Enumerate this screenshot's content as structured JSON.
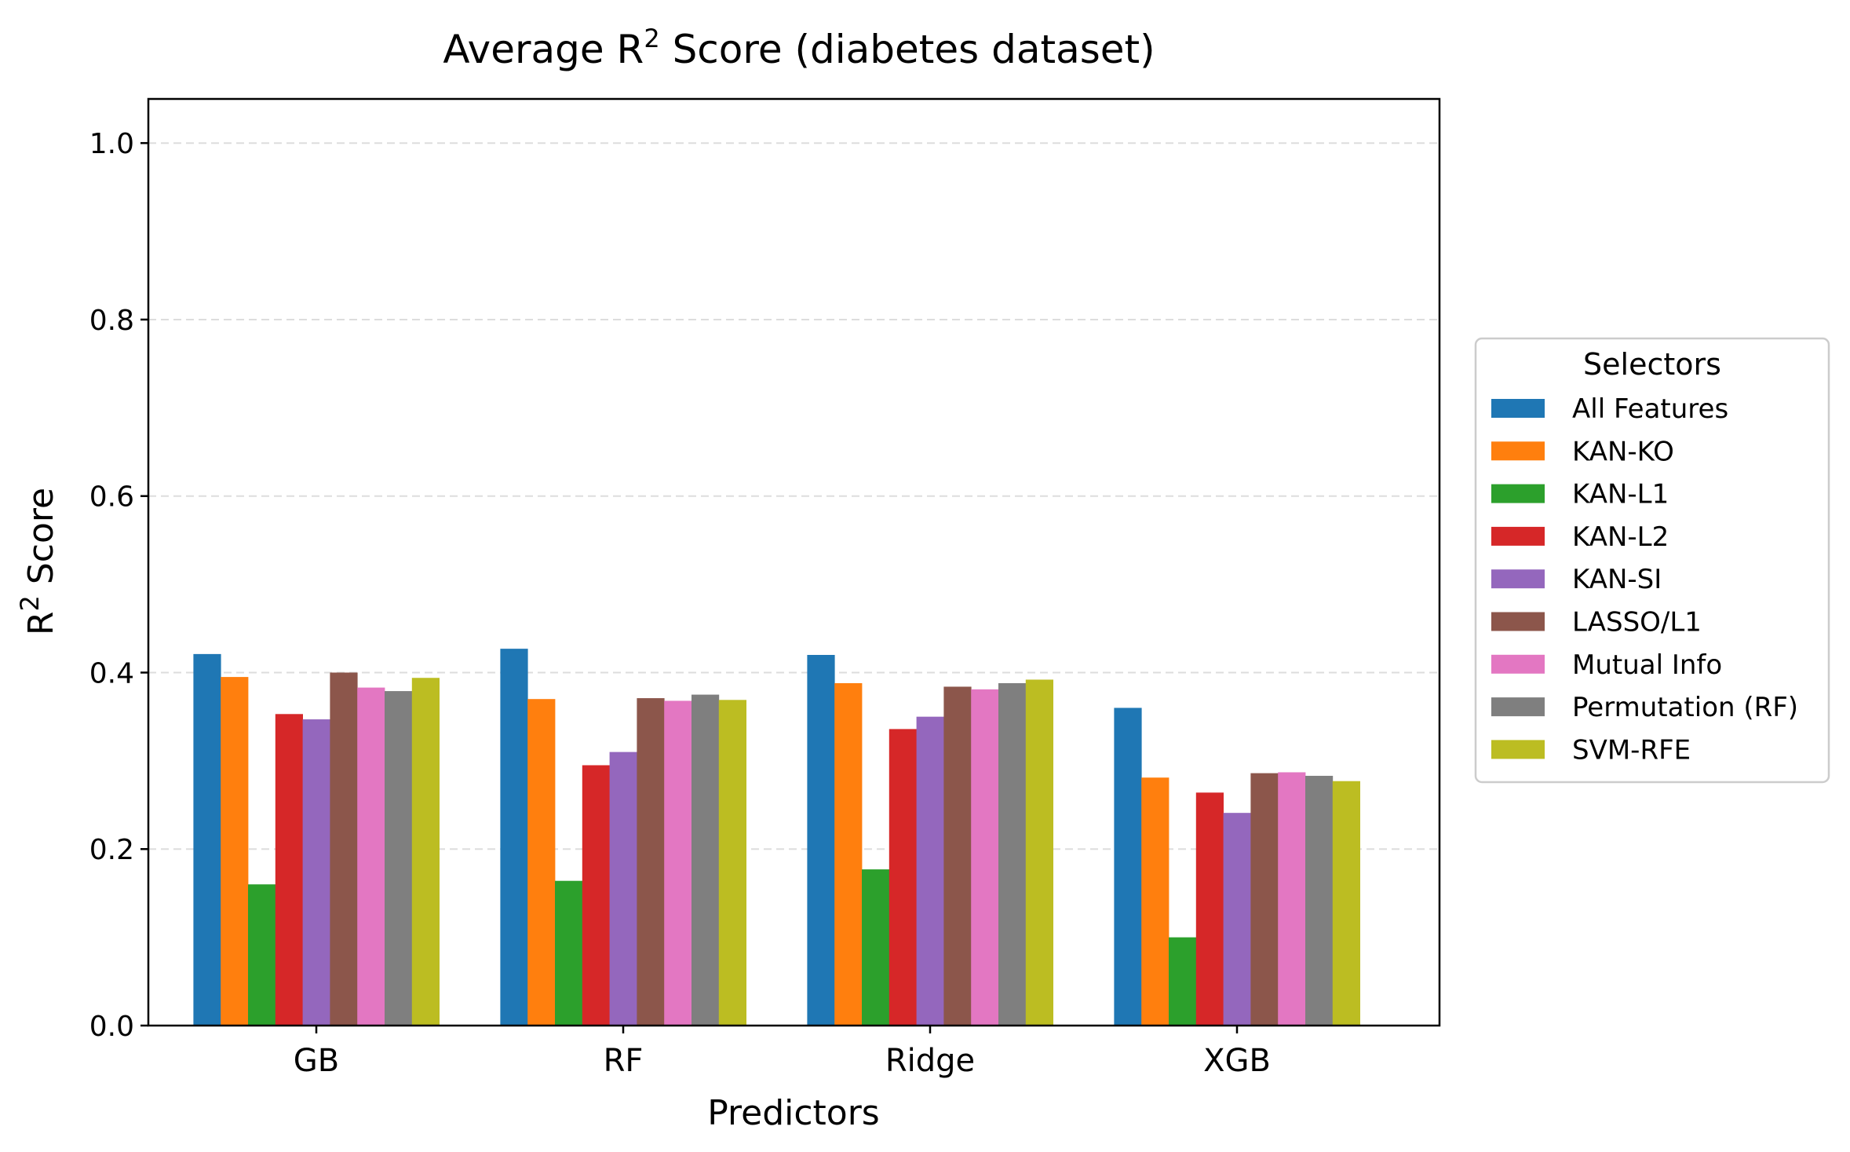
{
  "chart_data": {
    "type": "bar",
    "title_prefix": "Average R",
    "title_sup": "2",
    "title_suffix": " Score (diabetes dataset)",
    "xlabel": "Predictors",
    "ylabel_prefix": "R",
    "ylabel_sup": "2",
    "ylabel_suffix": " Score",
    "ylim": [
      0,
      1.05
    ],
    "yticks": [
      0.0,
      0.2,
      0.4,
      0.6,
      0.8,
      1.0
    ],
    "ytick_labels": [
      "0.0",
      "0.2",
      "0.4",
      "0.6",
      "0.8",
      "1.0"
    ],
    "grid": "horizontal dashed",
    "categories": [
      "GB",
      "RF",
      "Ridge",
      "XGB"
    ],
    "legend_title": "Selectors",
    "legend_position": "right-outside",
    "series": [
      {
        "name": "All Features",
        "color": "#1f77b4",
        "values": [
          0.421,
          0.427,
          0.42,
          0.36
        ]
      },
      {
        "name": "KAN-KO",
        "color": "#ff7f0e",
        "values": [
          0.395,
          0.37,
          0.388,
          0.281
        ]
      },
      {
        "name": "KAN-L1",
        "color": "#2ca02c",
        "values": [
          0.16,
          0.164,
          0.177,
          0.1
        ]
      },
      {
        "name": "KAN-L2",
        "color": "#d62728",
        "values": [
          0.353,
          0.295,
          0.336,
          0.264
        ]
      },
      {
        "name": "KAN-SI",
        "color": "#9467bd",
        "values": [
          0.347,
          0.31,
          0.35,
          0.241
        ]
      },
      {
        "name": "LASSO/L1",
        "color": "#8c564b",
        "values": [
          0.4,
          0.371,
          0.384,
          0.286
        ]
      },
      {
        "name": "Mutual Info",
        "color": "#e377c2",
        "values": [
          0.383,
          0.368,
          0.381,
          0.287
        ]
      },
      {
        "name": "Permutation (RF)",
        "color": "#7f7f7f",
        "values": [
          0.379,
          0.375,
          0.388,
          0.283
        ]
      },
      {
        "name": "SVM-RFE",
        "color": "#bcbd22",
        "values": [
          0.394,
          0.369,
          0.392,
          0.277
        ]
      }
    ]
  }
}
